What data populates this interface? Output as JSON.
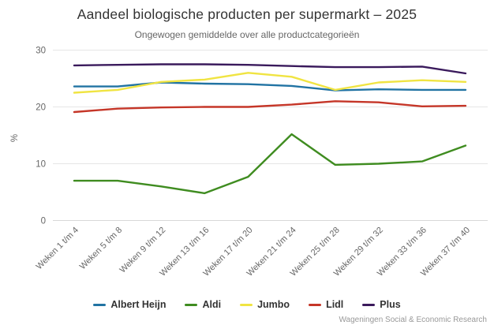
{
  "chart": {
    "title": "Aandeel biologische producten per supermarkt – 2025",
    "subtitle": "Ongewogen gemiddelde over alle productcategorieën",
    "credit": "Wageningen Social & Economic Research"
  },
  "chart_data": {
    "type": "line",
    "title": "Aandeel biologische producten per supermarkt – 2025",
    "subtitle": "Ongewogen gemiddelde over alle productcategorieën",
    "categories": [
      "Weken 1 t/m 4",
      "Weken 5 t/m 8",
      "Weken 9 t/m 12",
      "Weken 13 t/m 16",
      "Weken 17 t/m 20",
      "Weken 21 t/m 24",
      "Weken 25 t/m 28",
      "Weken 29 t/m 32",
      "Weken 33 t/m 36",
      "Weken 37 t/m 40"
    ],
    "series": [
      {
        "name": "Albert Heijn",
        "color": "#2173a3",
        "values": [
          23.6,
          23.6,
          24.3,
          24.1,
          24.0,
          23.7,
          22.9,
          23.1,
          23.0,
          23.0
        ]
      },
      {
        "name": "Aldi",
        "color": "#3f8c20",
        "values": [
          7.0,
          7.0,
          6.0,
          4.8,
          7.7,
          15.2,
          9.8,
          10.0,
          10.4,
          13.2
        ]
      },
      {
        "name": "Jumbo",
        "color": "#f0e442",
        "values": [
          22.5,
          23.0,
          24.4,
          24.8,
          26.0,
          25.3,
          23.0,
          24.3,
          24.7,
          24.4
        ]
      },
      {
        "name": "Lidl",
        "color": "#c53628",
        "values": [
          19.1,
          19.7,
          19.9,
          20.0,
          20.0,
          20.4,
          21.0,
          20.8,
          20.1,
          20.2
        ]
      },
      {
        "name": "Plus",
        "color": "#3a1a5c",
        "values": [
          27.3,
          27.4,
          27.5,
          27.5,
          27.4,
          27.2,
          27.0,
          27.0,
          27.1,
          25.9
        ]
      }
    ],
    "xlabel": "",
    "ylabel": "%",
    "yticks": [
      0,
      10,
      20,
      30
    ],
    "ylim": [
      0,
      30
    ],
    "grid": true,
    "legend_position": "bottom",
    "axis_label_color": "#666666",
    "grid_color": "#e6e6e6",
    "axis_line_color": "#d8d8d8"
  }
}
